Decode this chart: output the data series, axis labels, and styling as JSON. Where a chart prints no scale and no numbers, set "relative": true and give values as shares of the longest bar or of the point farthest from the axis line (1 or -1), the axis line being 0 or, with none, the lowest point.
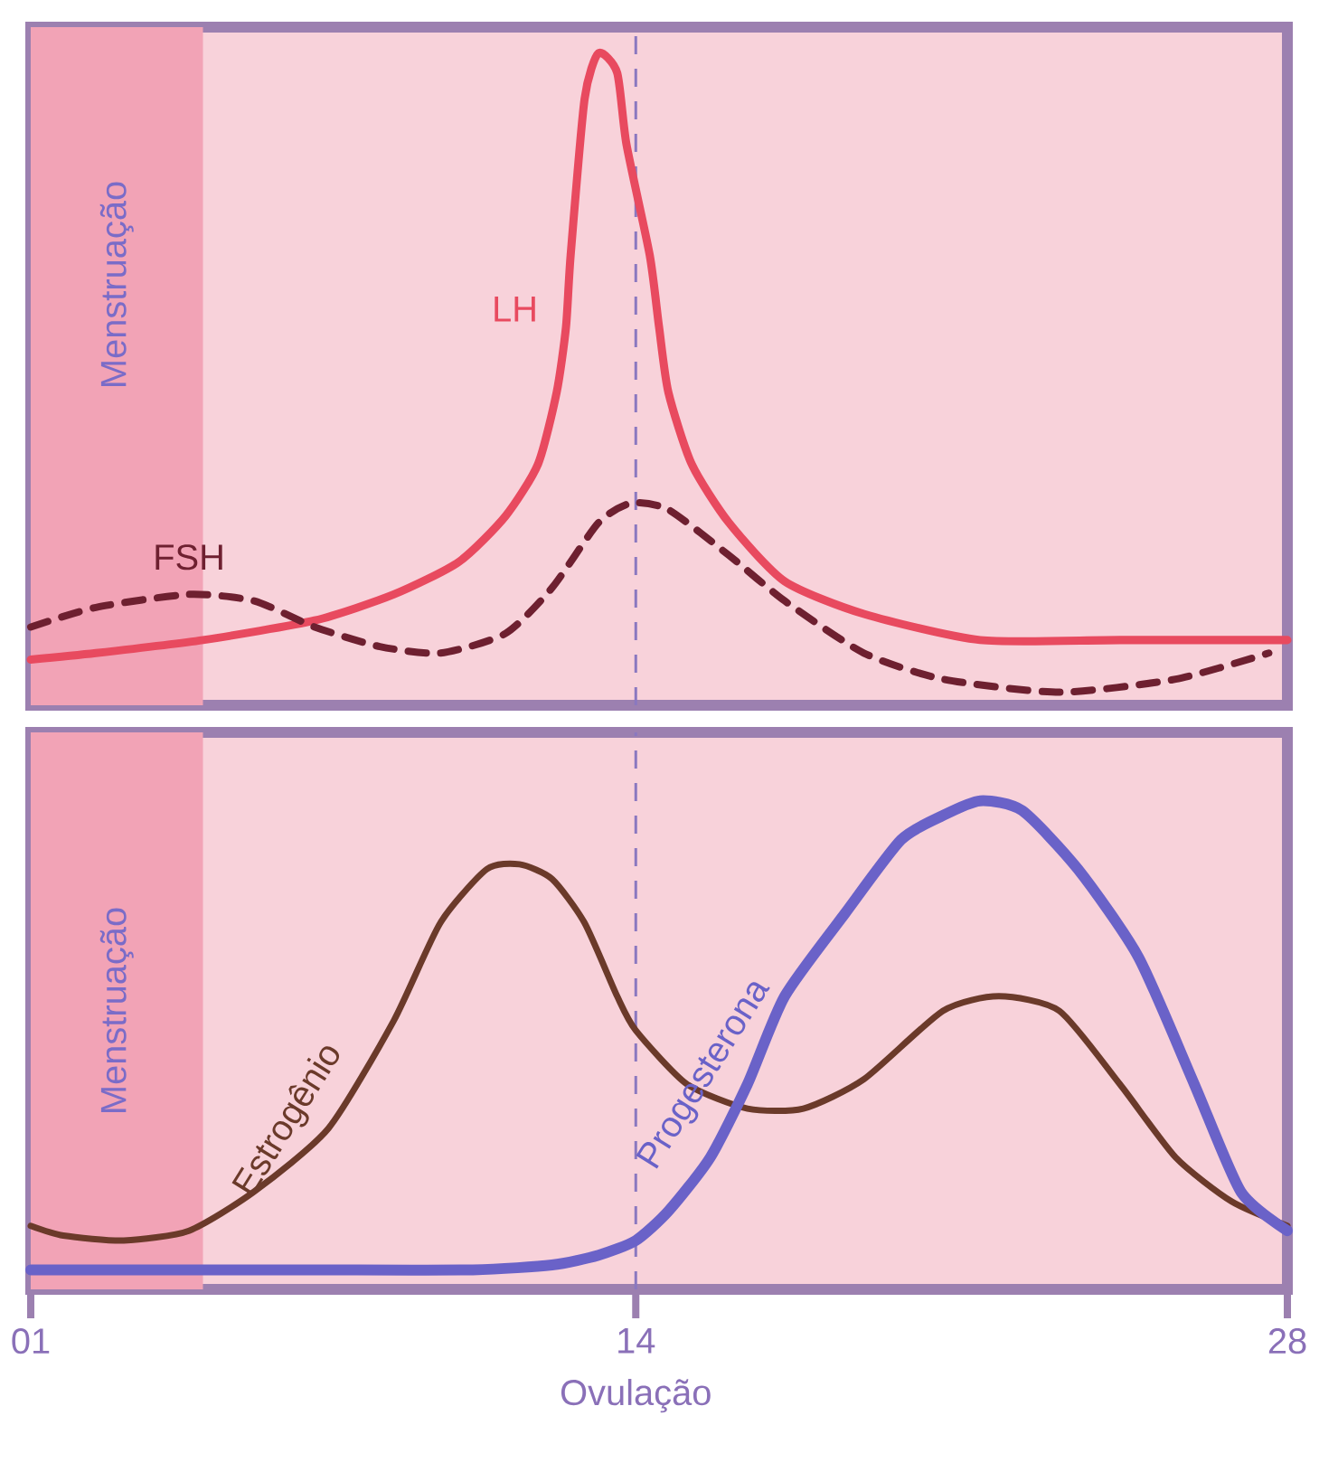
{
  "chart_data": [
    {
      "type": "line",
      "relative": true,
      "xlim": [
        1,
        28
      ],
      "tick_labels": false,
      "series": [
        {
          "name": "LH",
          "color": "#e84a5f",
          "line_style": "solid",
          "x": [
            1,
            2.4,
            4.7,
            7.1,
            8.8,
            10.2,
            11.2,
            11.9,
            12.3,
            12.5,
            12.6,
            12.9,
            13.2,
            13.6,
            13.8,
            14.3,
            14.5,
            14.7,
            15.2,
            16.0,
            17.2,
            18.9,
            21.4,
            24.4,
            28
          ],
          "values": [
            0.07,
            0.08,
            0.1,
            0.13,
            0.17,
            0.22,
            0.29,
            0.37,
            0.48,
            0.58,
            0.69,
            0.93,
            1,
            0.97,
            0.86,
            0.69,
            0.58,
            0.48,
            0.37,
            0.28,
            0.19,
            0.14,
            0.1,
            0.1,
            0.1
          ]
        },
        {
          "name": "FSH",
          "color": "#6e2030",
          "line_style": "dashed",
          "x": [
            1,
            2.4,
            4.4,
            5.8,
            7.1,
            8.5,
            9.8,
            11.2,
            12.2,
            13.2,
            13.9,
            14.7,
            16.0,
            17.2,
            18.9,
            20.6,
            23.1,
            25.6,
            27.6
          ],
          "values": [
            0.12,
            0.15,
            0.17,
            0.16,
            0.12,
            0.09,
            0.08,
            0.11,
            0.18,
            0.28,
            0.31,
            0.3,
            0.23,
            0.16,
            0.08,
            0.04,
            0.02,
            0.04,
            0.08
          ]
        }
      ],
      "bands": [
        {
          "axis": "x",
          "from": 1,
          "to": 4.7,
          "label": "Menstruação",
          "color": "#f2a3b6"
        }
      ],
      "ref_lines": [
        {
          "axis": "x",
          "value": 14,
          "color": "#8a78c0",
          "line_style": "dashed"
        }
      ]
    },
    {
      "type": "line",
      "relative": true,
      "xlim": [
        1,
        28
      ],
      "tick_labels": "x",
      "xticks": [
        {
          "value": 1,
          "label": "01"
        },
        14,
        28
      ],
      "series": [
        {
          "name": "Estrogênio",
          "color": "#6b3a2a",
          "line_style": "solid",
          "x": [
            1,
            1.7,
            3.0,
            4.4,
            5.8,
            7.4,
            8.8,
            9.8,
            10.8,
            11.5,
            12.2,
            12.9,
            13.6,
            14,
            15.1,
            16.4,
            17.6,
            18.9,
            20.6,
            21.8,
            23.1,
            24.4,
            25.6,
            26.8,
            28
          ],
          "values": [
            0.13,
            0.11,
            0.1,
            0.12,
            0.2,
            0.33,
            0.55,
            0.75,
            0.86,
            0.87,
            0.84,
            0.75,
            0.6,
            0.53,
            0.42,
            0.37,
            0.37,
            0.43,
            0.57,
            0.6,
            0.57,
            0.42,
            0.27,
            0.18,
            0.13
          ]
        },
        {
          "name": "Progesterona",
          "color": "#6a62c8",
          "line_style": "solid",
          "x": [
            1,
            3.7,
            7.1,
            10.5,
            12.2,
            13.2,
            14,
            14.7,
            15.6,
            16.4,
            17.2,
            18.5,
            19.7,
            20.6,
            21.4,
            22.3,
            23.5,
            24.8,
            26.0,
            27.0,
            28
          ],
          "values": [
            0.04,
            0.04,
            0.04,
            0.04,
            0.05,
            0.07,
            0.1,
            0.16,
            0.27,
            0.42,
            0.6,
            0.77,
            0.92,
            0.97,
            1,
            0.98,
            0.86,
            0.68,
            0.42,
            0.2,
            0.12
          ]
        }
      ],
      "bands": [
        {
          "axis": "x",
          "from": 1,
          "to": 4.7,
          "label": "Menstruação",
          "color": "#f2a3b6"
        }
      ],
      "ref_lines": [
        {
          "axis": "x",
          "value": 14,
          "label": "Ovulação",
          "color": "#8a78c0",
          "line_style": "dashed"
        }
      ]
    }
  ]
}
